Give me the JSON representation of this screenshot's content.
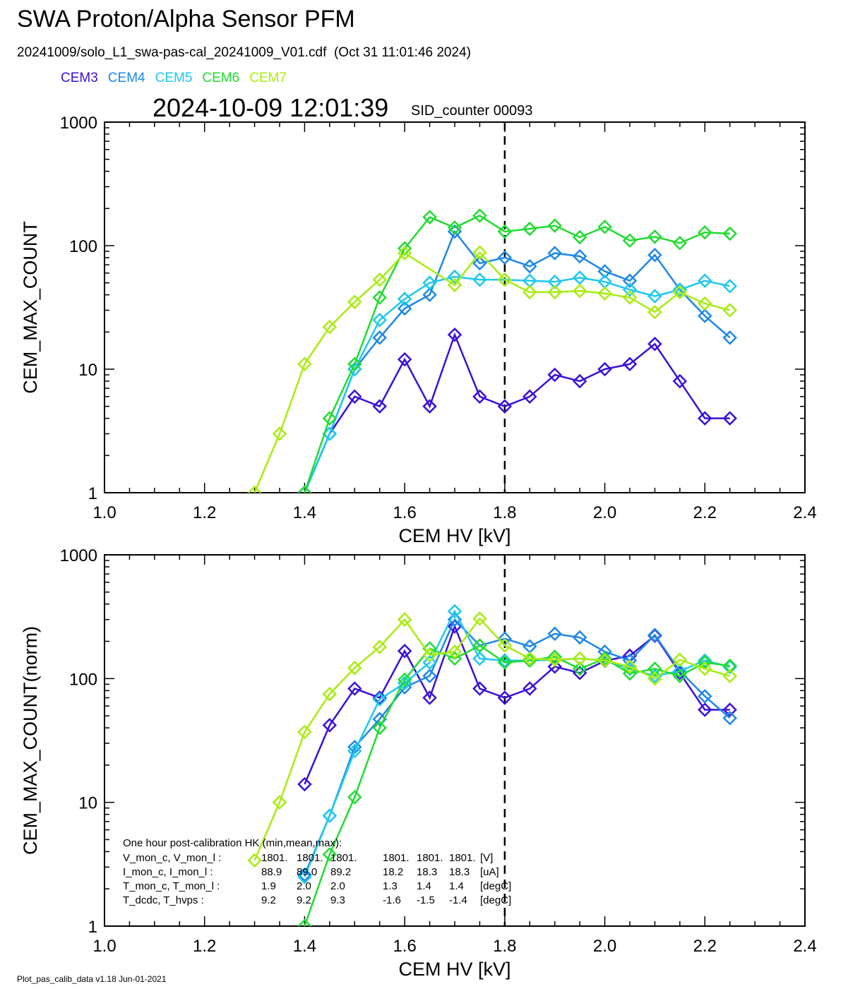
{
  "header": {
    "title": "SWA Proton/Alpha Sensor PFM",
    "subtitle": "20241009/solo_L1_swa-pas-cal_20241009_V01.cdf  (Oct 31 11:01:46 2024)",
    "datetime": "2024-10-09 12:01:39",
    "sid_counter": "SID_counter 00093"
  },
  "legend": [
    {
      "name": "CEM3",
      "color": "#3b10d8"
    },
    {
      "name": "CEM4",
      "color": "#1e88e5"
    },
    {
      "name": "CEM5",
      "color": "#1ec8f0"
    },
    {
      "name": "CEM6",
      "color": "#20dc30"
    },
    {
      "name": "CEM7",
      "color": "#a8ec10"
    }
  ],
  "footer": "Plot_pas_calib_data v1.18 Jun-01-2021",
  "hk_box": {
    "heading": "One hour post-calibration HK (min,mean,max):",
    "rows": [
      {
        "label": "V_mon_c, V_mon_l :",
        "c": [
          "1801.",
          "1801.",
          "1801."
        ],
        "l": [
          "1801.",
          "1801.",
          "1801."
        ],
        "unit": "[V]"
      },
      {
        "label": "I_mon_c,  I_mon_l :",
        "c": [
          "88.9",
          "89.0",
          "89.2"
        ],
        "l": [
          "18.2",
          "18.3",
          "18.3"
        ],
        "unit": "[uA]"
      },
      {
        "label": "T_mon_c, T_mon_l :",
        "c": [
          "1.9",
          "2.0",
          "2.0"
        ],
        "l": [
          "1.3",
          "1.4",
          "1.4"
        ],
        "unit": "[degC]"
      },
      {
        "label": "T_dcdc,    T_hvps :",
        "c": [
          "9.2",
          "9.2",
          "9.3"
        ],
        "l": [
          "-1.6",
          "-1.5",
          "-1.4"
        ],
        "unit": "[degC]"
      }
    ]
  },
  "chart_data": [
    {
      "type": "line",
      "title": "",
      "xlabel": "CEM HV [kV]",
      "ylabel": "CEM_MAX_COUNT",
      "xlim": [
        1.0,
        2.4
      ],
      "ylim": [
        1,
        1000
      ],
      "yscale": "log",
      "xticks": [
        "1.0",
        "1.2",
        "1.4",
        "1.6",
        "1.8",
        "2.0",
        "2.2",
        "2.4"
      ],
      "yticks": [
        "1",
        "10",
        "100",
        "1000"
      ],
      "marker": "diamond",
      "vline": 1.8,
      "x": [
        1.3,
        1.35,
        1.4,
        1.45,
        1.5,
        1.55,
        1.6,
        1.65,
        1.7,
        1.75,
        1.8,
        1.85,
        1.9,
        1.95,
        2.0,
        2.05,
        2.1,
        2.15,
        2.2,
        2.25
      ],
      "series": [
        {
          "name": "CEM3",
          "values": [
            null,
            null,
            1,
            3,
            6,
            5,
            12,
            5,
            19,
            6,
            5,
            6,
            9,
            8,
            10,
            11,
            16,
            8,
            4,
            4
          ]
        },
        {
          "name": "CEM4",
          "values": [
            null,
            null,
            1,
            3,
            10,
            18,
            31,
            40,
            130,
            72,
            80,
            68,
            87,
            82,
            62,
            52,
            84,
            44,
            27,
            18
          ]
        },
        {
          "name": "CEM5",
          "values": [
            null,
            null,
            1,
            3,
            10,
            25,
            37,
            50,
            56,
            53,
            53,
            52,
            51,
            55,
            51,
            44,
            39,
            44,
            52,
            47
          ]
        },
        {
          "name": "CEM6",
          "values": [
            null,
            null,
            1,
            4,
            11,
            38,
            95,
            170,
            140,
            175,
            130,
            137,
            145,
            117,
            142,
            110,
            118,
            105,
            128,
            125
          ]
        },
        {
          "name": "CEM7",
          "values": [
            1,
            3,
            11,
            22,
            35,
            53,
            87,
            null,
            48,
            88,
            53,
            42,
            42,
            43,
            41,
            38,
            29,
            42,
            34,
            30
          ]
        }
      ]
    },
    {
      "type": "line",
      "title": "",
      "xlabel": "CEM HV [kV]",
      "ylabel": "CEM_MAX_COUNT(norm)",
      "xlim": [
        1.0,
        2.4
      ],
      "ylim": [
        1,
        1000
      ],
      "yscale": "log",
      "xticks": [
        "1.0",
        "1.2",
        "1.4",
        "1.6",
        "1.8",
        "2.0",
        "2.2",
        "2.4"
      ],
      "yticks": [
        "1",
        "10",
        "100",
        "1000"
      ],
      "marker": "diamond",
      "vline": 1.8,
      "x": [
        1.3,
        1.35,
        1.4,
        1.45,
        1.5,
        1.55,
        1.6,
        1.65,
        1.7,
        1.75,
        1.8,
        1.85,
        1.9,
        1.95,
        2.0,
        2.05,
        2.1,
        2.15,
        2.2,
        2.25
      ],
      "series": [
        {
          "name": "CEM3",
          "values": [
            null,
            null,
            14,
            42,
            83,
            70,
            167,
            70,
            264,
            83,
            70,
            83,
            125,
            111,
            139,
            153,
            222,
            111,
            56,
            56
          ]
        },
        {
          "name": "CEM4",
          "values": [
            null,
            null,
            2.6,
            7.8,
            28,
            47,
            85,
            105,
            300,
            185,
            210,
            182,
            230,
            215,
            165,
            140,
            225,
            115,
            72,
            48
          ]
        },
        {
          "name": "CEM5",
          "values": [
            null,
            null,
            2.5,
            7.8,
            26,
            68,
            92,
            135,
            350,
            145,
            140,
            140,
            142,
            145,
            140,
            120,
            105,
            115,
            140,
            124
          ]
        },
        {
          "name": "CEM6",
          "values": [
            null,
            null,
            1,
            3.8,
            11,
            40,
            98,
            175,
            145,
            185,
            135,
            140,
            150,
            120,
            145,
            110,
            120,
            105,
            135,
            127
          ]
        },
        {
          "name": "CEM7",
          "values": [
            3.4,
            10,
            37,
            75,
            122,
            180,
            300,
            155,
            165,
            305,
            185,
            145,
            142,
            145,
            140,
            125,
            100,
            142,
            120,
            105
          ]
        }
      ]
    }
  ]
}
